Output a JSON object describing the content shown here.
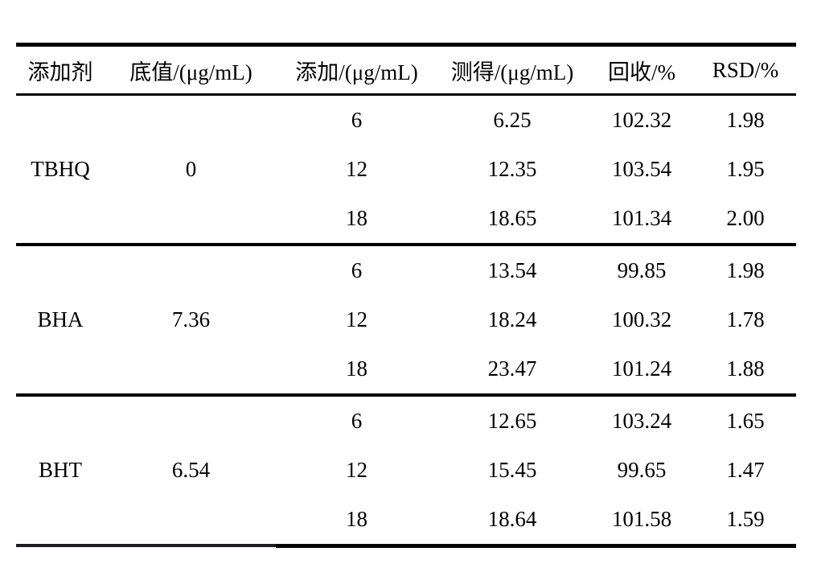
{
  "table": {
    "headers": [
      "添加剂",
      "底值/(μg/mL)",
      "添加/(μg/mL)",
      "测得/(μg/mL)",
      "回收/%",
      "RSD/%"
    ],
    "groups": [
      {
        "additive": "TBHQ",
        "base": "0",
        "rows": [
          [
            "6",
            "6.25",
            "102.32",
            "1.98"
          ],
          [
            "12",
            "12.35",
            "103.54",
            "1.95"
          ],
          [
            "18",
            "18.65",
            "101.34",
            "2.00"
          ]
        ]
      },
      {
        "additive": "BHA",
        "base": "7.36",
        "rows": [
          [
            "6",
            "13.54",
            "99.85",
            "1.98"
          ],
          [
            "12",
            "18.24",
            "100.32",
            "1.78"
          ],
          [
            "18",
            "23.47",
            "101.24",
            "1.88"
          ]
        ]
      },
      {
        "additive": "BHT",
        "base": "6.54",
        "rows": [
          [
            "6",
            "12.65",
            "103.24",
            "1.65"
          ],
          [
            "12",
            "15.45",
            "99.65",
            "1.47"
          ],
          [
            "18",
            "18.64",
            "101.58",
            "1.59"
          ]
        ]
      }
    ]
  },
  "colors": {
    "text": "#000000",
    "rule": "#000000",
    "background": "#ffffff"
  },
  "chart_data": {
    "type": "table",
    "columns": [
      "添加剂",
      "底值/(μg/mL)",
      "添加/(μg/mL)",
      "测得/(μg/mL)",
      "回收/%",
      "RSD/%"
    ],
    "rows": [
      [
        "TBHQ",
        0,
        6,
        6.25,
        102.32,
        1.98
      ],
      [
        "TBHQ",
        0,
        12,
        12.35,
        103.54,
        1.95
      ],
      [
        "TBHQ",
        0,
        18,
        18.65,
        101.34,
        2.0
      ],
      [
        "BHA",
        7.36,
        6,
        13.54,
        99.85,
        1.98
      ],
      [
        "BHA",
        7.36,
        12,
        18.24,
        100.32,
        1.78
      ],
      [
        "BHA",
        7.36,
        18,
        23.47,
        101.24,
        1.88
      ],
      [
        "BHT",
        6.54,
        6,
        12.65,
        103.24,
        1.65
      ],
      [
        "BHT",
        6.54,
        12,
        15.45,
        99.65,
        1.47
      ],
      [
        "BHT",
        6.54,
        18,
        18.64,
        101.58,
        1.59
      ]
    ]
  }
}
